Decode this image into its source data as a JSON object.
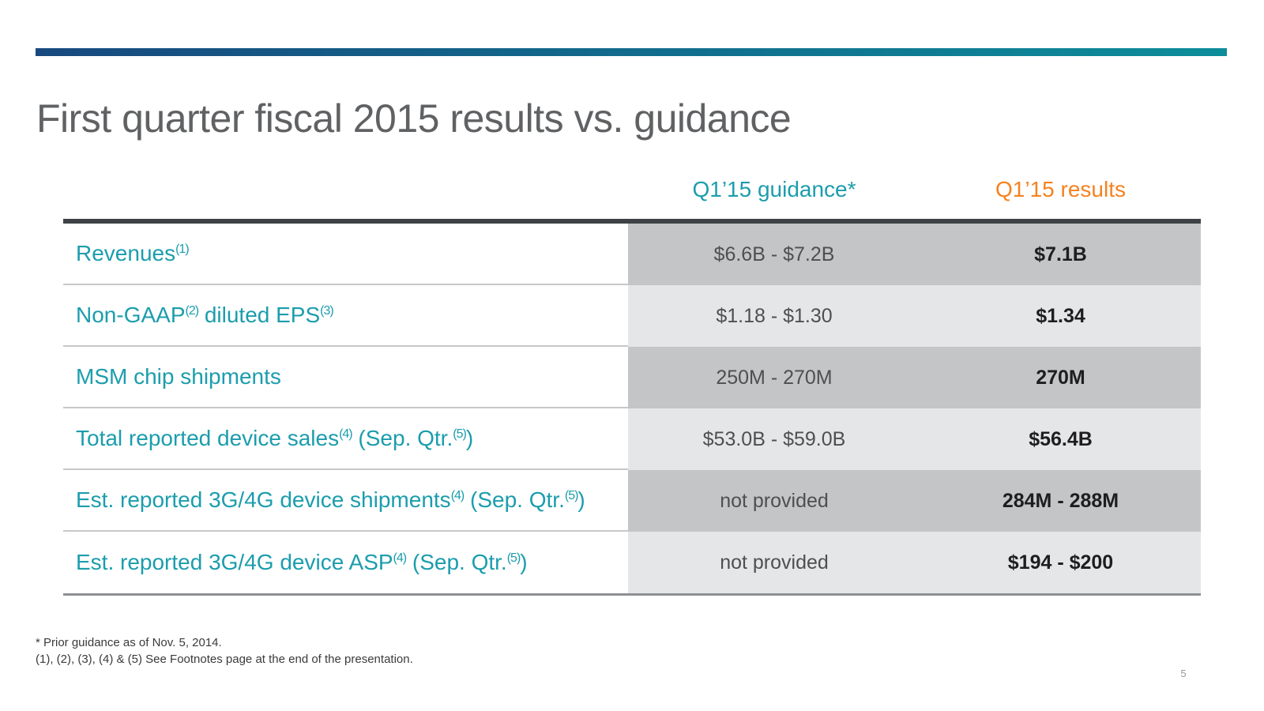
{
  "slide": {
    "title": "First quarter fiscal 2015 results vs. guidance",
    "page_number": "5",
    "accent_bar": {
      "left_color": "#17497E",
      "right_color": "#0C8D9A"
    }
  },
  "table": {
    "col_headers": {
      "guidance": "Q1’15 guidance*",
      "results": "Q1’15 results"
    },
    "header_colors": {
      "guidance": "#1B9DAD",
      "results": "#F58220"
    },
    "row_shades": {
      "dark": "#C4C5C6",
      "light": "#E5E6E7"
    },
    "rows": [
      {
        "label_parts": [
          {
            "text": "Revenues"
          },
          {
            "sup": "(1)"
          }
        ],
        "guidance": "$6.6B - $7.2B",
        "results": "$7.1B"
      },
      {
        "label_parts": [
          {
            "text": "Non-GAAP"
          },
          {
            "sup": "(2)"
          },
          {
            "text": " diluted EPS"
          },
          {
            "sup": "(3)"
          }
        ],
        "guidance": "$1.18 - $1.30",
        "results": "$1.34"
      },
      {
        "label_parts": [
          {
            "text": "MSM chip shipments"
          }
        ],
        "guidance": "250M - 270M",
        "results": "270M"
      },
      {
        "label_parts": [
          {
            "text": "Total reported device sales"
          },
          {
            "sup": "(4)"
          },
          {
            "text": " (Sep. Qtr."
          },
          {
            "sup": "(5)"
          },
          {
            "text": ")"
          }
        ],
        "guidance": "$53.0B - $59.0B",
        "results": "$56.4B"
      },
      {
        "label_parts": [
          {
            "text": "Est. reported 3G/4G device shipments"
          },
          {
            "sup": "(4)"
          },
          {
            "text": " (Sep. Qtr."
          },
          {
            "sup": "(5)"
          },
          {
            "text": ")"
          }
        ],
        "guidance": "not provided",
        "results": "284M - 288M"
      },
      {
        "label_parts": [
          {
            "text": "Est. reported 3G/4G device ASP"
          },
          {
            "sup": "(4)"
          },
          {
            "text": " (Sep. Qtr."
          },
          {
            "sup": "(5)"
          },
          {
            "text": ")"
          }
        ],
        "guidance": "not provided",
        "results": "$194 - $200"
      }
    ]
  },
  "footnotes": {
    "line1": "* Prior guidance as of Nov. 5, 2014.",
    "line2": "(1), (2), (3), (4) & (5) See Footnotes page at the end of the presentation."
  }
}
